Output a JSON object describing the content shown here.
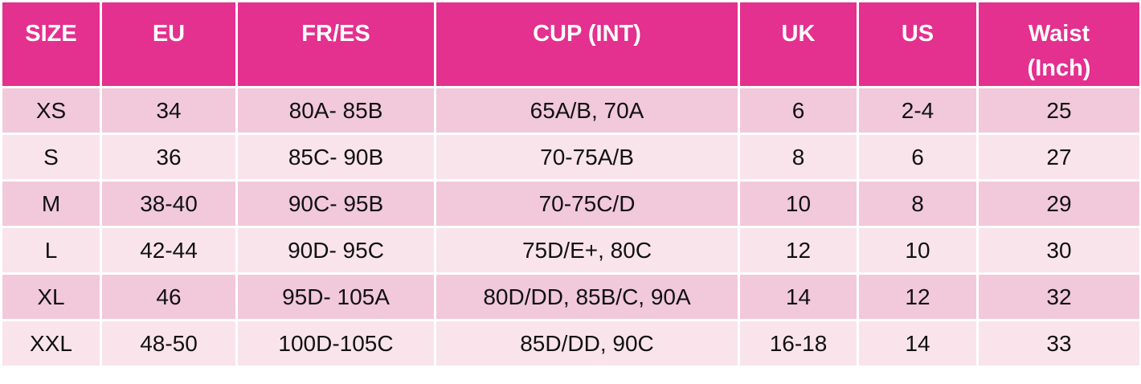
{
  "table": {
    "header": [
      "SIZE",
      "EU",
      "FR/ES",
      "CUP (INT)",
      "UK",
      "US",
      "Waist\n(Inch)"
    ],
    "rows": [
      [
        "XS",
        "34",
        "80A- 85B",
        "65A/B, 70A",
        "6",
        "2-4",
        "25"
      ],
      [
        "S",
        "36",
        "85C- 90B",
        "70-75A/B",
        "8",
        "6",
        "27"
      ],
      [
        "M",
        "38-40",
        "90C- 95B",
        "70-75C/D",
        "10",
        "8",
        "29"
      ],
      [
        "L",
        "42-44",
        "90D- 95C",
        "75D/E+, 80C",
        "12",
        "10",
        "30"
      ],
      [
        "XL",
        "46",
        "95D- 105A",
        "80D/DD, 85B/C, 90A",
        "14",
        "12",
        "32"
      ],
      [
        "XXL",
        "48-50",
        "100D-105C",
        "85D/DD, 90C",
        "16-18",
        "14",
        "33"
      ]
    ]
  }
}
